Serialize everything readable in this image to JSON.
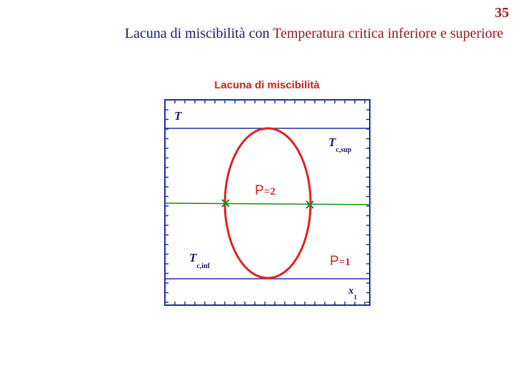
{
  "header": {
    "page_number": "35",
    "title": [
      "Lacuna di miscibilità con ",
      "Temperatura critica inferiore e superiore"
    ]
  },
  "diagram": {
    "title": "Lacuna di miscibilità",
    "labels": {
      "t_axis": "T",
      "t_sup": {
        "main": "T",
        "sub": "c,sup"
      },
      "p2": {
        "main": "P",
        "sub": "=2"
      },
      "t_inf": {
        "main": "T",
        "sub": "c,inf"
      },
      "p1": {
        "main": "P",
        "sub": "=1"
      },
      "x_axis": {
        "main": "x",
        "sub": "1"
      }
    }
  }
}
